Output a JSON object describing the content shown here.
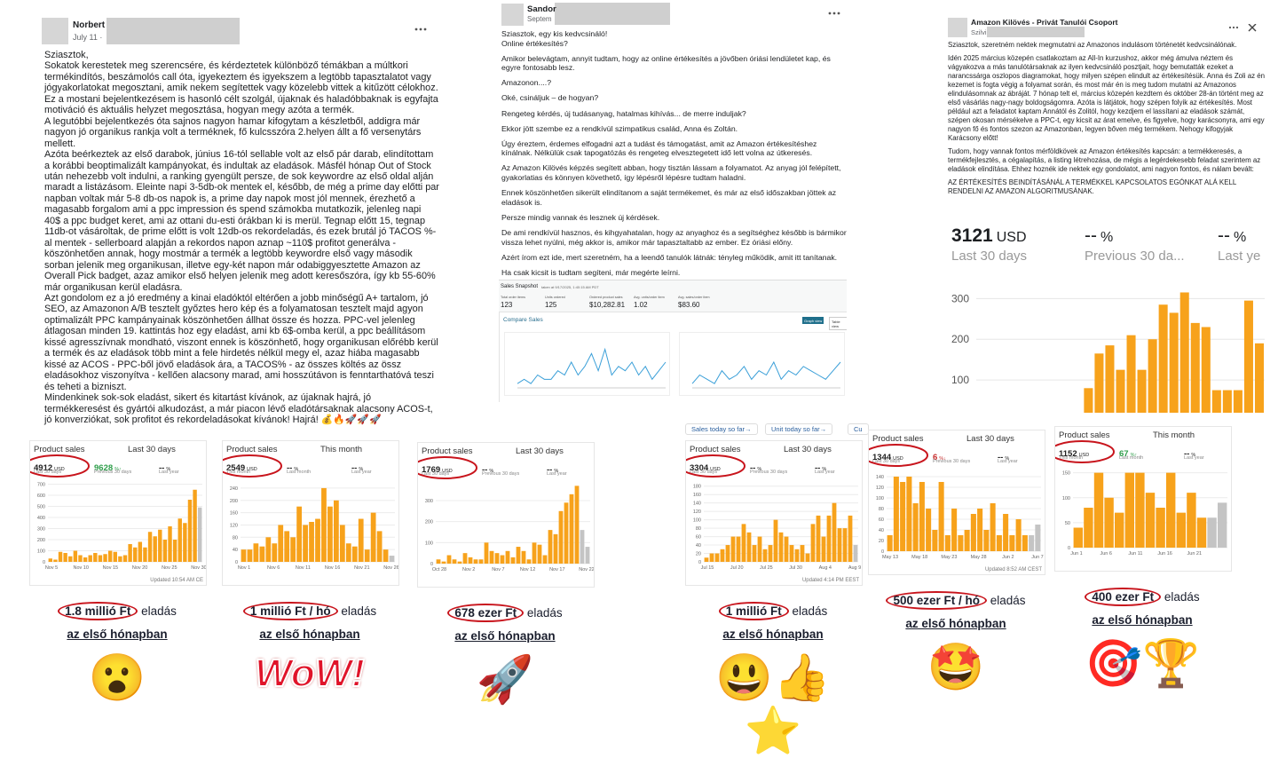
{
  "posts": [
    {
      "author": "Norbert",
      "date": "July 11 ·",
      "paragraphs": [
        "Sziasztok,",
        "Sokatok kerestetek meg szerencsére, és kérdeztetek különböző témákban a múltkori termékindítós, beszámolós call óta, igyekeztem és igyekszem a legtöbb tapasztalatot vagy jógyakorlatokat megosztani, amik nekem segítettek vagy közelebb vittek a kitűzött célokhoz. Ez a mostani bejelentkezésem is hasonló célt szolgál, újaknak és haladóbbaknak is egyfajta motiváció és aktuális helyzet megosztása, hogyan megy azóta a termék.",
        "A legutóbbi bejelentkezés óta sajnos nagyon hamar kifogytam a készletből, addigra már nagyon jó organikus rankja volt a terméknek, fő kulcsszóra 2.helyen állt a fő versenytárs mellett.",
        "Azóta beérkeztek az első darabok,  június 16-tól sellable volt az első pár darab, elindítottam a korábbi beoptimalizált kampányokat, és indultak az eladások. Másfél hónap Out of Stock után nehezebb volt indulni, a ranking gyengült persze, de sok keywordre az első oldal alján maradt a listázásom. Eleinte napi 3-5db-ok mentek el, később, de még a prime day előtti par napban voltak már 5-8 db-os napok is, a prime day napok most jól mennek, érezhető a magasabb forgalom ami a ppc impression és spend számokba mutatkozik, jelenleg napi 40$ a ppc budget keret, ami az ottani du-esti órákban ki is merül. Tegnap előtt 15, tegnap 11db-ot vásároltak, de prime előtt is volt 12db-os rekordeladás, és ezek brutál jó TACOS %-al mentek - sellerboard alapján a rekordos napon aznap ~110$ profitot generálva - köszönhetően annak, hogy mostmár a termék a legtöbb keywordre első vagy második sorban jelenik meg organikusan, illetve egy-két napon már odabiggyesztette Amazon az Overall Pick badget, azaz amikor első helyen jelenik meg adott keresőszóra, így kb 55-60% már organikusan kerül eladásra.",
        "Azt gondolom ez a jó eredmény a kinai eladóktól eltérően a jobb minőségű A+ tartalom, jó SEO, az Amazonon A/B tesztelt győztes hero kép és a folyamatosan tesztelt majd agyon optimalizált PPC kampányainak köszönhetően állhat össze és hozza. PPC-vel jelenleg átlagosan minden 19. kattintás hoz egy eladást, ami kb 6$-omba kerül, a ppc beállításom kissé agresszívnak mondható, viszont ennek is köszönhető, hogy organikusan előrébb kerül a termék és az eladások több mint a fele hirdetés nélkül megy el, azaz hiába magasabb kissé az ACOS - PPC-ből jövő eladások ára, a TACOS% - az összes költés az össz eladásokhoz viszonyítva - kellően alacsony marad, ami hosszútávon is fenntarthatóvá teszi és teheti a bizniszt.",
        "Mindenkinek sok-sok eladást, sikert és kitartást kívánok, az újaknak hajrá, jó termékkeresést és gyártói alkudozást, a már piacon lévő eladótársaknak alacsony ACOS-t, jó konverziókat, sok profitot és rekordeladásokat kívánok! Hajrá! 💰🔥🚀🚀🚀"
      ]
    },
    {
      "author": "Sandor",
      "date": "Septem",
      "paragraphs": [
        "Sziasztok, egy kis kedvcsináló!\nOnline értékesítés?",
        "Amikor belevágtam, annyit tudtam, hogy az online értékesítés a jövőben óriási lendületet kap, és egyre fontosabb lesz.",
        "Amazonon....?",
        "Oké, csináljuk – de hogyan?",
        "Rengeteg kérdés, új tudásanyag, hatalmas kihívás... de merre induljak?",
        "Ekkor jött szembe ez a rendkívül szimpatikus család, Anna és Zoltán.",
        "Úgy éreztem, érdemes elfogadni azt a tudást és támogatást, amit az Amazon értékesítéshez kínálnak. Nélkülük csak tapogatózás és rengeteg elvesztegetett idő lett volna az útkeresés.",
        "Az Amazon Kilövés képzés segített abban, hogy tisztán lássam a folyamatot. Az anyag jól felépített, gyakorlatias és könnyen követhető, így lépésről lépésre tudtam haladni.",
        "Ennek köszönhetően sikerült elindítanom a saját termékemet, és már az első időszakban jöttek az eladások is.",
        "Persze mindig vannak és lesznek új kérdések.",
        "De ami rendkívül hasznos, és kihgyahatalan, hogy az anyaghoz és a segítséghez később is bármikor vissza lehet nyúlni, még akkor is, amikor már tapasztaltabb az ember. Ez óriási előny.",
        "Azért írom ezt ide, mert szeretném, ha a leendő tanulók látnák: tényleg működik, amit itt tanítanak.",
        "Ha csak kicsit is tudtam segíteni, már megérte leírni."
      ],
      "snapshot": {
        "title": "Sales Snapshot",
        "taken": "taken at 9/17/2025, 1:40:15 AM PDT",
        "metrics": [
          {
            "label": "Total order items",
            "value": 123
          },
          {
            "label": "Units ordered",
            "value": 125
          },
          {
            "label": "Ordered product sales",
            "value": "$10,282.81"
          },
          {
            "label": "Avg. units/order item",
            "value": 1.02
          },
          {
            "label": "Avg. sales/order item",
            "value": "$83.60"
          }
        ],
        "compare": "Compare Sales",
        "buttons": [
          "Graph view",
          "Table view"
        ],
        "charts": [
          {
            "color": "#3a9fd8",
            "ylim": [
              0,
              12
            ],
            "values": [
              1,
              2,
              1,
              3,
              2,
              2,
              4,
              3,
              6,
              3,
              5,
              8,
              4,
              9,
              3,
              5,
              4,
              6,
              3,
              5,
              2,
              4,
              6
            ]
          },
          {
            "color": "#3a9fd8",
            "ylim": [
              0,
              12
            ],
            "values": [
              1,
              3,
              2,
              1,
              4,
              2,
              3,
              5,
              2,
              4,
              3,
              6,
              2,
              4,
              3,
              5,
              4,
              3,
              2,
              4,
              6
            ]
          }
        ]
      }
    },
    {
      "group": "Amazon Kilövés - Privát Tanulói Csoport",
      "author": "Szilvi",
      "paragraphs": [
        "Sziasztok, szeretném nektek megmutatni az Amazonos indulásom történetét kedvcsinálónak.",
        "Idén 2025 március közepén csatlakoztam az All-In kurzushoz, akkor még ámulva néztem és vágyakozva a más tanulótársaknak az ilyen kedvcsináló posztjait, hogy bemutatták ezeket a narancssárga oszlopos diagramokat, hogy milyen szépen elindult az értékesítésük. Anna és Zoli az én kezemet is fogta végig a folyamat során, és most már én is meg tudom mutatni az Amazonos elindulásomnak az ábráját. 7 hónap telt el, március közepén kezdtem és október 28-án történt meg az első vásárlás nagy-nagy boldogságomra. Azóta is látjátok, hogy szépen folyik az értékesítés. Most például azt a feladatot kaptam Annától és Zolitól, hogy kezdjem el lassítani az eladások számát, szépen okosan mérsékelve a PPC-t, egy kicsit az árat emelve, és figyelve, hogy karácsonyra, ami egy nagyon fő és fontos szezon az Amazonban, legyen bőven még termékem. Nehogy kifogyjak Karácsony előtt!",
        "Tudom, hogy vannak fontos mérföldkövek az Amazon értékesítés kapcsán: a termékkeresés, a termékfejlesztés, a cégalapítás, a listing létrehozása, de mégis a legérdekesebb feladat szerintem az eladások elindítása. Ehhez hoznék ide nektek egy gondolatot, ami nagyon fontos, és nálam bevált:",
        " AZ ÉRTÉKESÍTÉS BEINDÍTÁSÁNÁL A TERMÉKKEL KAPCSOLATOS EGÓNKAT ALÁ KELL RENDELNI AZ AMAZON ALGORITMUSÁNAK."
      ],
      "stats": [
        {
          "value": 3121,
          "unit": "USD",
          "label": "Last 30 days"
        },
        {
          "value": "--",
          "unit": "%",
          "label": "Previous 30 da..."
        },
        {
          "value": "--",
          "unit": "%",
          "label": "Last ye"
        }
      ],
      "chart": {
        "type": "bar",
        "color": "#f7a21b",
        "ylim": [
          0,
          340
        ],
        "yticks": [
          100,
          200,
          300
        ],
        "values": [
          0,
          0,
          0,
          0,
          0,
          0,
          0,
          0,
          0,
          0,
          80,
          165,
          185,
          125,
          210,
          125,
          200,
          285,
          265,
          315,
          240,
          230,
          75,
          75,
          75,
          295,
          190
        ]
      }
    }
  ],
  "cards": [
    {
      "title": "Product sales",
      "period": "Last 30 days",
      "stats": [
        {
          "value": 4912,
          "unit": "USD",
          "label": "Last 30 days"
        },
        {
          "value": 9628,
          "unit": "%↑",
          "label": "Previous 30 days"
        },
        {
          "value": "--",
          "unit": "%",
          "label": "Last year"
        }
      ],
      "ylim": [
        0,
        720
      ],
      "yticks": [
        0,
        100,
        200,
        300,
        400,
        500,
        600,
        700
      ],
      "xlabels": [
        "Nov 5",
        "Nov 10",
        "Nov 15",
        "Nov 20",
        "Nov 25",
        "Nov 30"
      ],
      "bars": {
        "color": "#f7a21b",
        "values": [
          30,
          20,
          90,
          80,
          50,
          100,
          60,
          40,
          60,
          80,
          60,
          70,
          100,
          90,
          50,
          60,
          160,
          130,
          180,
          130,
          270,
          230,
          290,
          200,
          320,
          200,
          390,
          350,
          560,
          650
        ]
      },
      "pending": {
        "color": "#c4c4c4",
        "values": [
          490
        ]
      },
      "updated": "Updated 10:54 AM CE",
      "caption": {
        "bold": "1.8 millió Ft",
        "text": " eladás",
        "line2": "az első hónapban"
      },
      "emoji": "😮"
    },
    {
      "title": "Product sales",
      "period": "This month",
      "stats": [
        {
          "value": 2549,
          "unit": "USD",
          "label": "This month"
        },
        {
          "value": "--",
          "unit": "%",
          "label": "Last month"
        },
        {
          "value": "--",
          "unit": "%",
          "label": "Last year"
        }
      ],
      "ylim": [
        0,
        260
      ],
      "yticks": [
        0,
        40,
        80,
        120,
        160,
        200,
        240
      ],
      "xlabels": [
        "Nov 1",
        "Nov 6",
        "Nov 11",
        "Nov 16",
        "Nov 21",
        "Nov 26"
      ],
      "bars": {
        "color": "#f7a21b",
        "values": [
          40,
          40,
          60,
          50,
          80,
          60,
          120,
          100,
          80,
          180,
          120,
          130,
          140,
          240,
          180,
          200,
          120,
          60,
          50,
          140,
          40,
          160,
          100,
          40
        ]
      },
      "pending": {
        "color": "#c4c4c4",
        "values": [
          20
        ]
      },
      "caption": {
        "bold": "1 millió Ft / hó",
        "text": " eladás",
        "line2": "az első hónapban"
      },
      "emoji": "WoW!"
    },
    {
      "title": "Product sales",
      "period": "Last 30 days",
      "stats": [
        {
          "value": 1769,
          "unit": "USD",
          "label": "Last 30 days"
        },
        {
          "value": "--",
          "unit": "%",
          "label": "Previous 30 days"
        },
        {
          "value": "--",
          "unit": "%",
          "label": "Last year"
        }
      ],
      "ylim": [
        0,
        380
      ],
      "yticks": [
        0,
        100,
        200,
        300
      ],
      "xlabels": [
        "Oct 28",
        "Nov 2",
        "Nov 7",
        "Nov 12",
        "Nov 17",
        "Nov 22"
      ],
      "bars": {
        "color": "#f7a21b",
        "values": [
          20,
          10,
          40,
          20,
          10,
          50,
          30,
          20,
          20,
          100,
          60,
          50,
          40,
          60,
          30,
          80,
          60,
          20,
          100,
          90,
          40,
          160,
          140,
          250,
          290,
          330,
          370
        ]
      },
      "pending": {
        "color": "#c4c4c4",
        "values": [
          160,
          80
        ]
      },
      "caption": {
        "bold": "678 ezer Ft",
        "text": " eladás",
        "line2": "az első hónapban"
      },
      "emoji": "🚀"
    },
    {
      "tabs": [
        "Sales today so far→",
        "Unit today so far→",
        "Cu"
      ],
      "title": "Product sales",
      "period": "Last 30 days",
      "stats": [
        {
          "value": 3304,
          "unit": "USD",
          "label": "Last 30 days"
        },
        {
          "value": "--",
          "unit": "%",
          "label": "Previous 30 days"
        },
        {
          "value": "--",
          "unit": "%",
          "label": "Last year"
        }
      ],
      "ylim": [
        0,
        190
      ],
      "yticks": [
        0,
        20,
        40,
        60,
        80,
        100,
        120,
        140,
        160,
        180
      ],
      "xlabels": [
        "Jul 15",
        "Jul 20",
        "Jul 25",
        "Jul 30",
        "Aug 4",
        "Aug 9"
      ],
      "bars": {
        "color": "#f7a21b",
        "values": [
          10,
          20,
          20,
          30,
          40,
          60,
          60,
          90,
          70,
          40,
          60,
          30,
          40,
          100,
          70,
          60,
          40,
          30,
          40,
          20,
          90,
          110,
          60,
          110,
          140,
          80,
          80,
          110
        ]
      },
      "pending": {
        "color": "#c4c4c4",
        "values": [
          40
        ]
      },
      "updated": "Updated 4:14 PM EEST",
      "caption": {
        "bold": "1 millió Ft",
        "text": " eladás",
        "line2": "az első hónapban"
      },
      "emoji": "😃👍⭐"
    },
    {
      "title": "Product sales",
      "period": "Last 30 days",
      "stats": [
        {
          "value": 1344,
          "unit": "USD",
          "label": "Last 30 days"
        },
        {
          "value": 6,
          "unit": "%↓",
          "label": "Previous 30 days"
        },
        {
          "value": "--",
          "unit": "%",
          "label": "Last year"
        }
      ],
      "ylim": [
        0,
        150
      ],
      "yticks": [
        0,
        20,
        40,
        60,
        80,
        100,
        120,
        140
      ],
      "xlabels": [
        "May 13",
        "May 18",
        "May 23",
        "May 28",
        "Jun 2",
        "Jun 7"
      ],
      "bars": {
        "color": "#f7a21b",
        "values": [
          30,
          140,
          130,
          140,
          90,
          130,
          80,
          40,
          130,
          30,
          80,
          30,
          40,
          70,
          80,
          40,
          90,
          30,
          70,
          30,
          60,
          30
        ]
      },
      "pending": {
        "color": "#c4c4c4",
        "values": [
          30,
          50
        ]
      },
      "updated": "Updated 8:52 AM CEST",
      "caption": {
        "bold": "500 ezer Ft / hó",
        "text": " eladás",
        "line2": "az első hónapban"
      },
      "emoji": "🤩"
    },
    {
      "title": "Product sales",
      "period": "This month",
      "stats": [
        {
          "value": 1152,
          "unit": "USD",
          "label": "This month"
        },
        {
          "value": 67,
          "unit": "%↑",
          "label": "Last month"
        },
        {
          "value": "--",
          "unit": "%",
          "label": "Last year"
        }
      ],
      "ylim": [
        0,
        160
      ],
      "yticks": [
        0,
        50,
        100,
        150
      ],
      "xlabels": [
        "Jun 1",
        "Jun 6",
        "Jun 11",
        "Jun 16",
        "Jun 21"
      ],
      "bars": {
        "color": "#f7a21b",
        "values": [
          40,
          80,
          150,
          100,
          70,
          150,
          150,
          110,
          80,
          150,
          70,
          110,
          60
        ]
      },
      "pending": {
        "color": "#c4c4c4",
        "values": [
          60,
          90
        ]
      },
      "caption": {
        "bold": "400 ezer Ft",
        "text": " eladás",
        "line2": "az első hónapban"
      },
      "emoji": "🎯🏆"
    }
  ]
}
